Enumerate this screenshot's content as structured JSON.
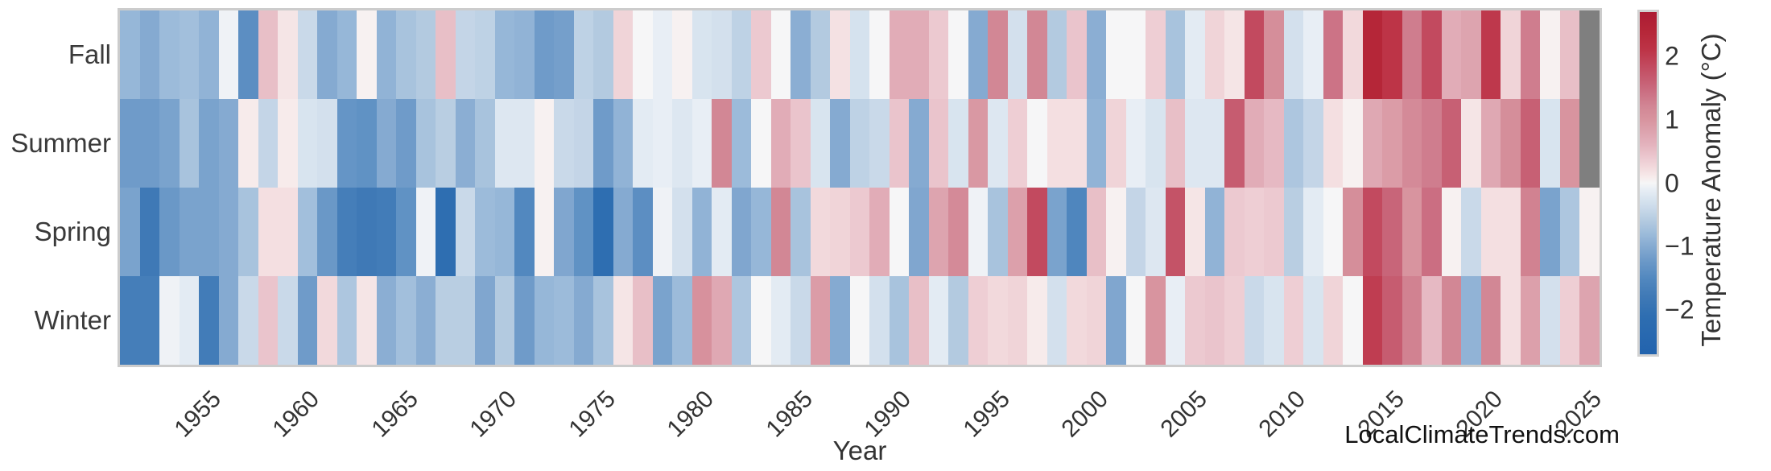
{
  "page": {
    "background": "#ffffff",
    "watermark": "LocalClimateTrends.com"
  },
  "chart_data": {
    "type": "heatmap",
    "title": "",
    "xlabel": "Year",
    "x_start": 1951,
    "x_end": 2025,
    "xticks": [
      1955,
      1960,
      1965,
      1970,
      1975,
      1980,
      1985,
      1990,
      1995,
      2000,
      2005,
      2010,
      2015,
      2020,
      2025
    ],
    "rows": [
      "Fall",
      "Summer",
      "Spring",
      "Winter"
    ],
    "series": [
      {
        "name": "Fall",
        "values": [
          -0.85,
          -1.0,
          -0.8,
          -0.75,
          -0.9,
          -0.05,
          -1.4,
          0.5,
          0.15,
          -0.4,
          -1.0,
          -0.85,
          0.05,
          -0.9,
          -0.7,
          -0.6,
          0.5,
          -0.45,
          -0.5,
          -0.85,
          -0.9,
          -1.2,
          -1.15,
          -0.5,
          -0.6,
          0.3,
          0.0,
          -0.1,
          0.05,
          -0.25,
          -0.3,
          -0.5,
          0.4,
          0.0,
          -0.95,
          -0.6,
          0.18,
          -0.28,
          0.0,
          0.7,
          0.7,
          0.4,
          0.0,
          -1.0,
          1.2,
          -0.3,
          1.2,
          -0.6,
          0.45,
          -0.95,
          0.0,
          0.0,
          0.35,
          -0.7,
          -0.15,
          0.3,
          0.15,
          1.85,
          1.1,
          -0.3,
          -0.1,
          1.4,
          0.25,
          2.4,
          2.1,
          1.3,
          1.85,
          0.7,
          0.8,
          2.05,
          0.3,
          1.3,
          0.05,
          0.5,
          null
        ]
      },
      {
        "name": "Summer",
        "values": [
          -1.2,
          -1.2,
          -1.1,
          -0.7,
          -1.1,
          -1.0,
          0.1,
          -0.45,
          0.1,
          -0.25,
          -0.3,
          -1.3,
          -1.35,
          -1.0,
          -1.2,
          -0.7,
          -0.55,
          -0.95,
          -0.7,
          -0.2,
          -0.2,
          0.05,
          -0.4,
          -0.45,
          -1.2,
          -0.9,
          -0.15,
          -0.1,
          -0.2,
          -0.1,
          1.2,
          -0.8,
          0.0,
          0.7,
          0.45,
          -0.25,
          -1.0,
          -0.5,
          -0.4,
          0.45,
          -1.0,
          0.45,
          -0.25,
          0.95,
          -0.2,
          0.35,
          0.0,
          0.2,
          0.2,
          -0.9,
          0.3,
          -0.1,
          -0.25,
          0.5,
          -0.2,
          -0.2,
          1.65,
          0.7,
          0.55,
          -0.65,
          -0.45,
          0.2,
          0.05,
          0.75,
          0.9,
          1.15,
          1.3,
          1.6,
          0.15,
          0.75,
          1.1,
          1.6,
          -0.25,
          1.0,
          null
        ]
      },
      {
        "name": "Spring",
        "values": [
          -1.1,
          -1.8,
          -1.25,
          -1.1,
          -1.1,
          -1.0,
          -0.7,
          0.2,
          0.2,
          -0.75,
          -1.25,
          -1.7,
          -1.8,
          -1.75,
          -1.35,
          -0.05,
          -2.1,
          -0.4,
          -0.8,
          -0.85,
          -1.5,
          0.05,
          -1.05,
          -1.35,
          -2.1,
          -1.0,
          -1.4,
          -0.05,
          -0.3,
          -0.9,
          -0.15,
          -1.05,
          -0.85,
          1.2,
          -0.7,
          0.25,
          0.3,
          0.4,
          0.7,
          0.0,
          -1.05,
          0.8,
          1.15,
          -0.05,
          -0.7,
          0.85,
          1.85,
          -1.1,
          -1.55,
          0.5,
          0.05,
          -0.45,
          -0.2,
          1.75,
          0.15,
          -0.9,
          0.4,
          0.35,
          0.4,
          -0.55,
          -0.15,
          0.0,
          1.1,
          1.85,
          1.55,
          1.0,
          1.45,
          0.05,
          -0.4,
          0.2,
          0.2,
          1.25,
          -1.1,
          -0.65,
          0.05
        ]
      },
      {
        "name": "Winter",
        "values": [
          -1.7,
          -1.7,
          -0.05,
          -0.15,
          -1.75,
          -1.0,
          -0.4,
          0.45,
          -0.4,
          -1.2,
          0.25,
          -0.65,
          0.15,
          -0.95,
          -0.75,
          -0.95,
          -0.55,
          -0.55,
          -1.05,
          -0.6,
          -1.2,
          -0.85,
          -0.8,
          -1.0,
          -0.7,
          0.15,
          0.5,
          -1.1,
          -0.8,
          1.05,
          0.75,
          -0.65,
          0.0,
          -0.15,
          -0.4,
          0.9,
          -1.0,
          0.0,
          -0.3,
          -0.7,
          0.5,
          -0.15,
          -0.6,
          0.35,
          0.25,
          0.3,
          0.1,
          -0.3,
          0.25,
          0.3,
          -1.05,
          0.0,
          1.0,
          -0.1,
          0.4,
          0.45,
          0.35,
          -0.4,
          -0.25,
          0.35,
          -0.25,
          0.3,
          0.0,
          2.0,
          1.65,
          1.25,
          0.55,
          1.2,
          -0.9,
          1.2,
          0.2,
          0.85,
          -0.3,
          0.35,
          0.8
        ]
      }
    ],
    "vmin": -2.7,
    "vmax": 2.7,
    "missing_color": "#7f7f7f",
    "frame_color": "#cccccc",
    "axis_text_color": "#333333",
    "colorbar": {
      "label": "Temperature Anomaly (°C)",
      "ticks": [
        2,
        1,
        0,
        -1,
        -2
      ]
    },
    "colormap": [
      [
        -2.7,
        "#2263ae"
      ],
      [
        -2.1,
        "#2e6eb1"
      ],
      [
        -1.8,
        "#3f79b6"
      ],
      [
        -1.5,
        "#5288bf"
      ],
      [
        -1.2,
        "#6f9bc9"
      ],
      [
        -1.0,
        "#85aad1"
      ],
      [
        -0.8,
        "#9cbbda"
      ],
      [
        -0.6,
        "#b3cae0"
      ],
      [
        -0.4,
        "#c9d9e9"
      ],
      [
        -0.25,
        "#d8e4ef"
      ],
      [
        -0.1,
        "#e8eef5"
      ],
      [
        0.0,
        "#f6f6f7"
      ],
      [
        0.1,
        "#f7ebeb"
      ],
      [
        0.25,
        "#f2d9dc"
      ],
      [
        0.4,
        "#ecc9d0"
      ],
      [
        0.6,
        "#e4b4be"
      ],
      [
        0.8,
        "#dda4af"
      ],
      [
        1.0,
        "#d8949f"
      ],
      [
        1.2,
        "#d28795"
      ],
      [
        1.4,
        "#cc7386"
      ],
      [
        1.6,
        "#c76074"
      ],
      [
        1.85,
        "#c24a5f"
      ],
      [
        2.1,
        "#bd3447"
      ],
      [
        2.4,
        "#b52638"
      ],
      [
        2.7,
        "#ac1c34"
      ]
    ]
  }
}
